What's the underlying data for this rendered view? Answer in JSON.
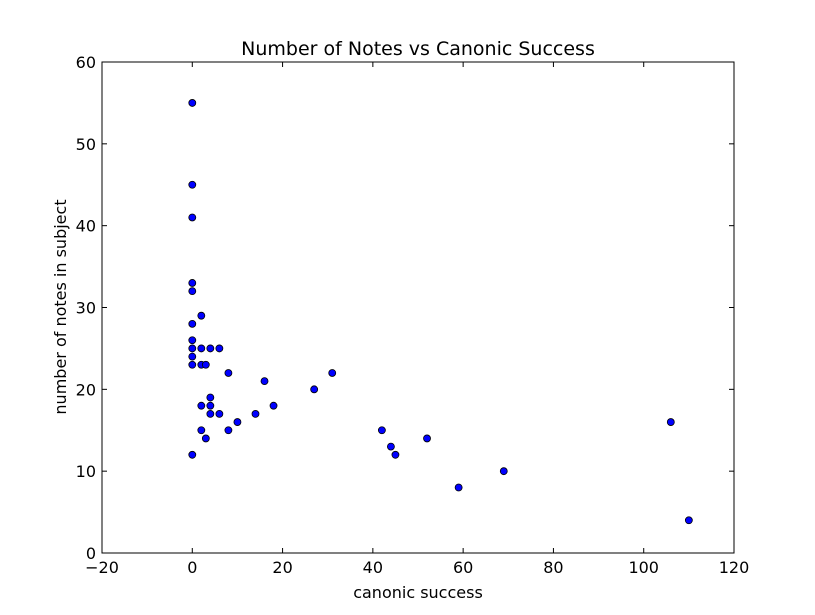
{
  "chart_data": {
    "type": "scatter",
    "title": "Number of Notes vs Canonic Success",
    "xlabel": "canonic success",
    "ylabel": "number of notes in subject",
    "xlim": [
      -20,
      120
    ],
    "ylim": [
      0,
      60
    ],
    "xticks": [
      -20,
      0,
      20,
      40,
      60,
      80,
      100,
      120
    ],
    "yticks": [
      0,
      10,
      20,
      30,
      40,
      50,
      60
    ],
    "xtick_labels": [
      "−20",
      "0",
      "20",
      "40",
      "60",
      "80",
      "100",
      "120"
    ],
    "ytick_labels": [
      "0",
      "10",
      "20",
      "30",
      "40",
      "50",
      "60"
    ],
    "grid": false,
    "marker_color": "#0000ff",
    "points": [
      {
        "x": 0,
        "y": 55
      },
      {
        "x": 0,
        "y": 45
      },
      {
        "x": 0,
        "y": 41
      },
      {
        "x": 0,
        "y": 33
      },
      {
        "x": 0,
        "y": 32
      },
      {
        "x": 0,
        "y": 28
      },
      {
        "x": 0,
        "y": 26
      },
      {
        "x": 0,
        "y": 25
      },
      {
        "x": 0,
        "y": 24
      },
      {
        "x": 0,
        "y": 23
      },
      {
        "x": 0,
        "y": 12
      },
      {
        "x": 2,
        "y": 29
      },
      {
        "x": 2,
        "y": 25
      },
      {
        "x": 2,
        "y": 23
      },
      {
        "x": 2,
        "y": 18
      },
      {
        "x": 2,
        "y": 15
      },
      {
        "x": 3,
        "y": 23
      },
      {
        "x": 3,
        "y": 14
      },
      {
        "x": 4,
        "y": 25
      },
      {
        "x": 4,
        "y": 19
      },
      {
        "x": 4,
        "y": 18
      },
      {
        "x": 4,
        "y": 17
      },
      {
        "x": 6,
        "y": 25
      },
      {
        "x": 6,
        "y": 17
      },
      {
        "x": 8,
        "y": 22
      },
      {
        "x": 8,
        "y": 15
      },
      {
        "x": 10,
        "y": 16
      },
      {
        "x": 14,
        "y": 17
      },
      {
        "x": 16,
        "y": 21
      },
      {
        "x": 18,
        "y": 18
      },
      {
        "x": 27,
        "y": 20
      },
      {
        "x": 31,
        "y": 22
      },
      {
        "x": 42,
        "y": 15
      },
      {
        "x": 44,
        "y": 13
      },
      {
        "x": 45,
        "y": 12
      },
      {
        "x": 52,
        "y": 14
      },
      {
        "x": 59,
        "y": 8
      },
      {
        "x": 69,
        "y": 10
      },
      {
        "x": 106,
        "y": 16
      },
      {
        "x": 110,
        "y": 4
      }
    ]
  }
}
